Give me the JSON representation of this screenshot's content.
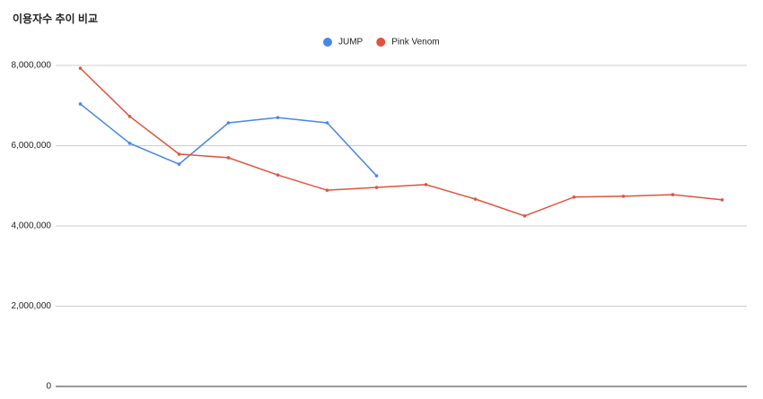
{
  "chart_data": {
    "type": "line",
    "title": "이용자수 추이 비교",
    "categories": [
      null,
      null,
      null,
      null,
      null,
      null,
      null,
      null,
      null,
      null,
      null,
      null,
      null,
      null
    ],
    "series": [
      {
        "name": "JUMP",
        "color": "#4a86e8",
        "values": [
          7040000,
          6060000,
          5540000,
          6570000,
          6700000,
          6570000,
          5250000,
          null,
          null,
          null,
          null,
          null,
          null,
          null
        ]
      },
      {
        "name": "Pink Venom",
        "color": "#e0533d",
        "values": [
          7930000,
          6730000,
          5790000,
          5700000,
          5270000,
          4890000,
          4960000,
          5030000,
          4670000,
          4250000,
          4720000,
          4740000,
          4780000,
          4650000
        ]
      }
    ],
    "ylim": [
      0,
      8000000
    ],
    "yticks": [
      0,
      {
        "value": 2000000,
        "label": "2,000,000"
      },
      {
        "value": 4000000,
        "label": "4,000,000"
      },
      {
        "value": 6000000,
        "label": "6,000,000"
      },
      {
        "value": 8000000,
        "label": "8,000,000"
      }
    ],
    "grid": true,
    "legend": "top"
  }
}
